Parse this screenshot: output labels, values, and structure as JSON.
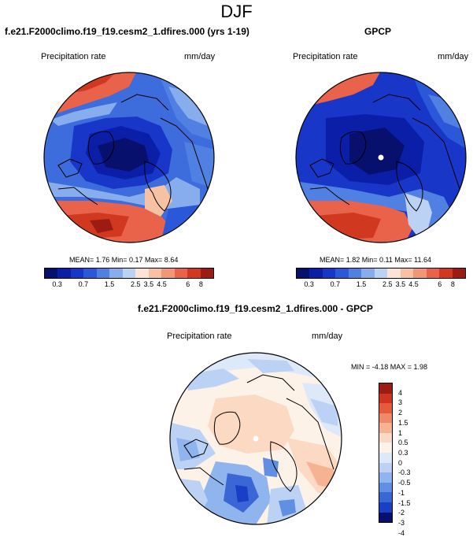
{
  "figure": {
    "title": "DJF",
    "colors": {
      "blue_scale": [
        "#08106e",
        "#0a1ea8",
        "#1836c8",
        "#2a58d8",
        "#4f80e2",
        "#87aded",
        "#bcd2f5",
        "#fbe4d6",
        "#f7c2a4",
        "#f19677",
        "#e8634a",
        "#d0381f",
        "#9c1c12"
      ],
      "diff_scale": [
        "#08106e",
        "#1a3fc4",
        "#3a66d6",
        "#6190e2",
        "#8fb4ee",
        "#bcd2f5",
        "#dde9f9",
        "#fdf2e8",
        "#fbd9c3",
        "#f6b394",
        "#ef8a68",
        "#e55c3c",
        "#cf3420",
        "#9c1c12"
      ]
    }
  },
  "panel_model": {
    "title": "f.e21.F2000climo.f19_f19.cesm2_1.dfires.000 (yrs 1-19)",
    "var_label": "Precipitation rate",
    "units": "mm/day",
    "stats": "MEAN=   1.76  Min=   0.17  Max=   8.64"
  },
  "panel_obs": {
    "title": "GPCP",
    "var_label": "Precipitation rate",
    "units": "mm/day",
    "stats": "MEAN=   1.82  Min=   0.11  Max=  11.64"
  },
  "colorbar_levels": [
    "0.3",
    "0.7",
    "1.5",
    "2.5",
    "3.5",
    "4.5",
    "6",
    "8"
  ],
  "panel_diff": {
    "title": "f.e21.F2000climo.f19_f19.cesm2_1.dfires.000 - GPCP",
    "var_label": "Precipitation rate",
    "units": "mm/day",
    "stats": "MIN =  -4.18 MAX =   1.98",
    "levels": [
      "4",
      "3",
      "2",
      "1.5",
      "1",
      "0.5",
      "0.3",
      "0",
      "-0.3",
      "-0.5",
      "-1",
      "-1.5",
      "-2",
      "-3",
      "-4"
    ]
  }
}
